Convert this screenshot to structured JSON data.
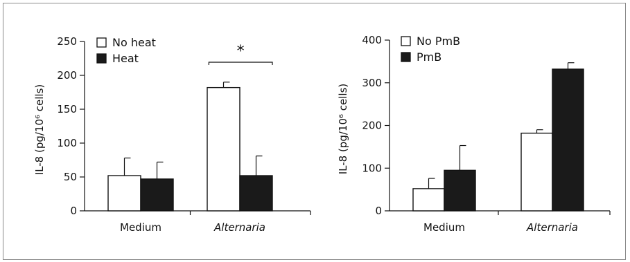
{
  "chart_data": [
    {
      "type": "bar",
      "categories": [
        "Medium",
        "Alternaria"
      ],
      "category_italic": [
        false,
        true
      ],
      "ylabel": "IL-8 (pg/10⁶ cells)",
      "ylim": [
        0,
        250
      ],
      "yticks": [
        0,
        50,
        100,
        150,
        200,
        250
      ],
      "legend_position": "top-left",
      "series": [
        {
          "name": "No heat",
          "color": "#ffffff",
          "values": [
            52,
            182
          ],
          "errors": [
            26,
            8
          ]
        },
        {
          "name": "Heat",
          "color": "#1a1a1a",
          "values": [
            47,
            52
          ],
          "errors": [
            25,
            29
          ]
        }
      ],
      "annotations": [
        {
          "text": "*",
          "type": "significance-bracket",
          "category": "Alternaria"
        }
      ]
    },
    {
      "type": "bar",
      "categories": [
        "Medium",
        "Alternaria"
      ],
      "category_italic": [
        false,
        true
      ],
      "ylabel": "IL-8 (pg/10⁶ cells)",
      "ylim": [
        0,
        400
      ],
      "yticks": [
        0,
        100,
        200,
        300,
        400
      ],
      "legend_position": "top-left",
      "series": [
        {
          "name": "No PmB",
          "color": "#ffffff",
          "values": [
            52,
            182
          ],
          "errors": [
            24,
            8
          ]
        },
        {
          "name": "PmB",
          "color": "#1a1a1a",
          "values": [
            95,
            332
          ],
          "errors": [
            58,
            15
          ]
        }
      ]
    }
  ]
}
